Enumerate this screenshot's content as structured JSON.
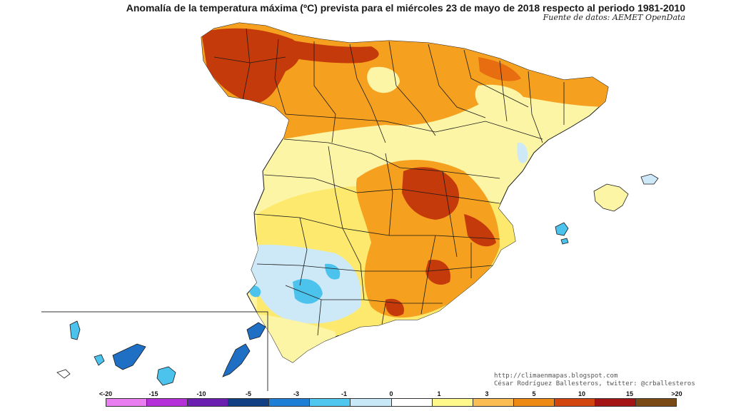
{
  "map": {
    "title": "Anomalía de la temperatura máxima (ºC) prevista para el miércoles 23 de mayo de 2018 respecto al periodo 1981-2010",
    "source": "Fuente de datos: AEMET OpenData"
  },
  "credits": {
    "url": "http://climaenmapas.blogspot.com",
    "author": "César Rodríguez Ballesteros, twitter: @crballesteros"
  },
  "legend": {
    "labels": [
      "<-20",
      "-15",
      "-10",
      "-5",
      "-3",
      "-1",
      "0",
      "1",
      "3",
      "5",
      "10",
      "15",
      ">20"
    ],
    "colors": [
      "#e97ef0",
      "#b530d8",
      "#6a1fb0",
      "#123f83",
      "#1e7fd6",
      "#4fc7ee",
      "#c7e8f6",
      "#ffffff",
      "#fdf889",
      "#f9bd53",
      "#ee8a14",
      "#d2450c",
      "#a51414",
      "#7a4a14"
    ]
  },
  "palette": {
    "light_yellow": "#fdf5a6",
    "yellow": "#fce96d",
    "orange": "#f5a01f",
    "deep_orange": "#e86d10",
    "red": "#c53a0a",
    "light_blue": "#cde9f7",
    "blue": "#4cc3ec",
    "dark_blue": "#1f6fc4",
    "border": "#1a1a1a"
  }
}
